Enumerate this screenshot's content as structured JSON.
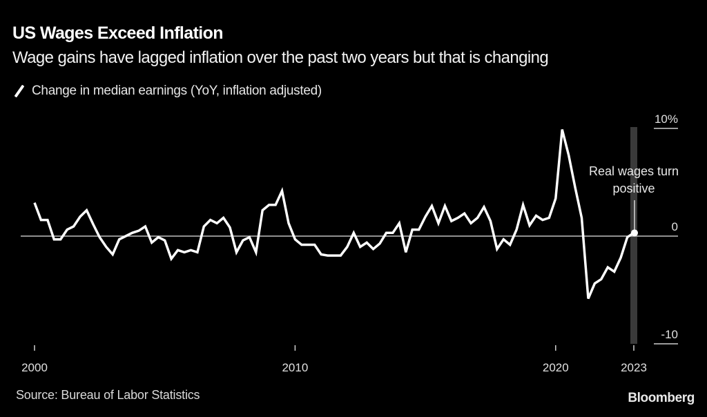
{
  "header": {
    "title": "US Wages Exceed Inflation",
    "subtitle": "Wage gains have lagged inflation over the past two years but that is changing"
  },
  "footer": {
    "source": "Source: Bureau of Labor Statistics",
    "brand": "Bloomberg"
  },
  "colors": {
    "background": "#000000",
    "line": "#ffffff",
    "zero_line": "#bfbfbf",
    "highlight_band": "#3a3a3a"
  },
  "chart_data": {
    "type": "line",
    "title": "US Wages Exceed Inflation",
    "subtitle": "Wage gains have lagged inflation over the past two years but that is changing",
    "xlabel": "",
    "ylabel": "",
    "x_start": 2000.0,
    "x_step": 0.25,
    "xlim": [
      2000,
      2023
    ],
    "ylim": [
      -10,
      10
    ],
    "x_ticks": [
      2000,
      2010,
      2020,
      2023
    ],
    "x_tick_labels": [
      "2000",
      "2010",
      "2020",
      "2023"
    ],
    "y_ticks": [
      10,
      0,
      -10
    ],
    "y_tick_labels": [
      "10%",
      "0",
      "-10"
    ],
    "grid": false,
    "legend_position": "top-left",
    "series": [
      {
        "name": "Change in median earnings (YoY, inflation adjusted)",
        "values": [
          3.1,
          1.5,
          1.5,
          -0.3,
          -0.3,
          0.6,
          0.9,
          1.8,
          2.4,
          1.1,
          -0.1,
          -1.0,
          -1.7,
          -0.3,
          0.0,
          0.3,
          0.5,
          0.9,
          -0.6,
          -0.1,
          -0.4,
          -2.1,
          -1.3,
          -1.5,
          -1.3,
          -1.5,
          0.9,
          1.5,
          1.2,
          1.7,
          0.8,
          -1.5,
          -0.4,
          -0.1,
          -1.5,
          2.4,
          2.9,
          2.9,
          4.2,
          1.2,
          -0.3,
          -0.8,
          -0.8,
          -0.8,
          -1.7,
          -1.8,
          -1.8,
          -1.8,
          -1.0,
          0.3,
          -1.0,
          -0.6,
          -1.2,
          -0.7,
          0.3,
          0.3,
          1.2,
          -1.5,
          0.6,
          0.6,
          1.8,
          2.8,
          1.2,
          2.8,
          1.4,
          1.7,
          2.1,
          1.2,
          1.7,
          2.7,
          1.4,
          -1.2,
          -0.3,
          -0.8,
          0.6,
          2.9,
          1.0,
          1.9,
          1.5,
          1.7,
          3.5,
          9.9,
          7.5,
          4.5,
          1.7,
          -5.8,
          -4.4,
          -4.0,
          -2.9,
          -3.3,
          -2.0,
          -0.1,
          0.3
        ]
      }
    ],
    "highlight": {
      "x": 2023,
      "label": "Real wages turn positive"
    },
    "annotation": {
      "line1": "Real wages turn",
      "line2": "positive"
    }
  }
}
